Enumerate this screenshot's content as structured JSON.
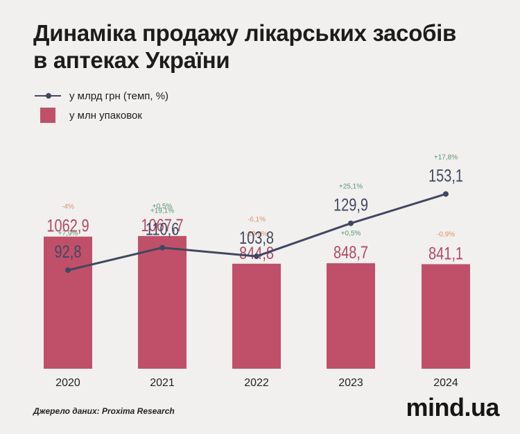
{
  "title_lines": [
    "Динаміка продажу лікарських засобів",
    "в аптеках України"
  ],
  "legend": {
    "line_label": "у млрд грн (темп, %)",
    "bar_label": "у млн упаковок"
  },
  "chart_data": {
    "type": "bar+line",
    "categories": [
      "2020",
      "2021",
      "2022",
      "2023",
      "2024"
    ],
    "series": [
      {
        "name": "у млн упаковок",
        "kind": "bar",
        "values": [
          1062.9,
          1067.7,
          844.8,
          848.7,
          841.1
        ],
        "labels": [
          "1062,9",
          "1067,7",
          "844,8",
          "848,7",
          "841,1"
        ],
        "change_labels": [
          "-4%",
          "+0,5%",
          "-20,9%",
          "+0,5%",
          "-0,9%"
        ],
        "color": "#c05069"
      },
      {
        "name": "у млрд грн (темп, %)",
        "kind": "line",
        "values": [
          92.8,
          110.6,
          103.8,
          129.9,
          153.1
        ],
        "labels": [
          "92,8",
          "110,6",
          "103,8",
          "129,9",
          "153,1"
        ],
        "change_labels": [
          "+7,9%",
          "+19,1%",
          "-6,1%",
          "+25,1%",
          "+17,8%"
        ],
        "color": "#414761"
      }
    ],
    "colors": {
      "positive": "#5a9470",
      "negative": "#e0906a",
      "bar_value": "#b04864",
      "line_value": "#414761",
      "axis_label": "#222222"
    }
  },
  "source": "Джерело даних: Proxima Research",
  "logo": "mind.ua"
}
